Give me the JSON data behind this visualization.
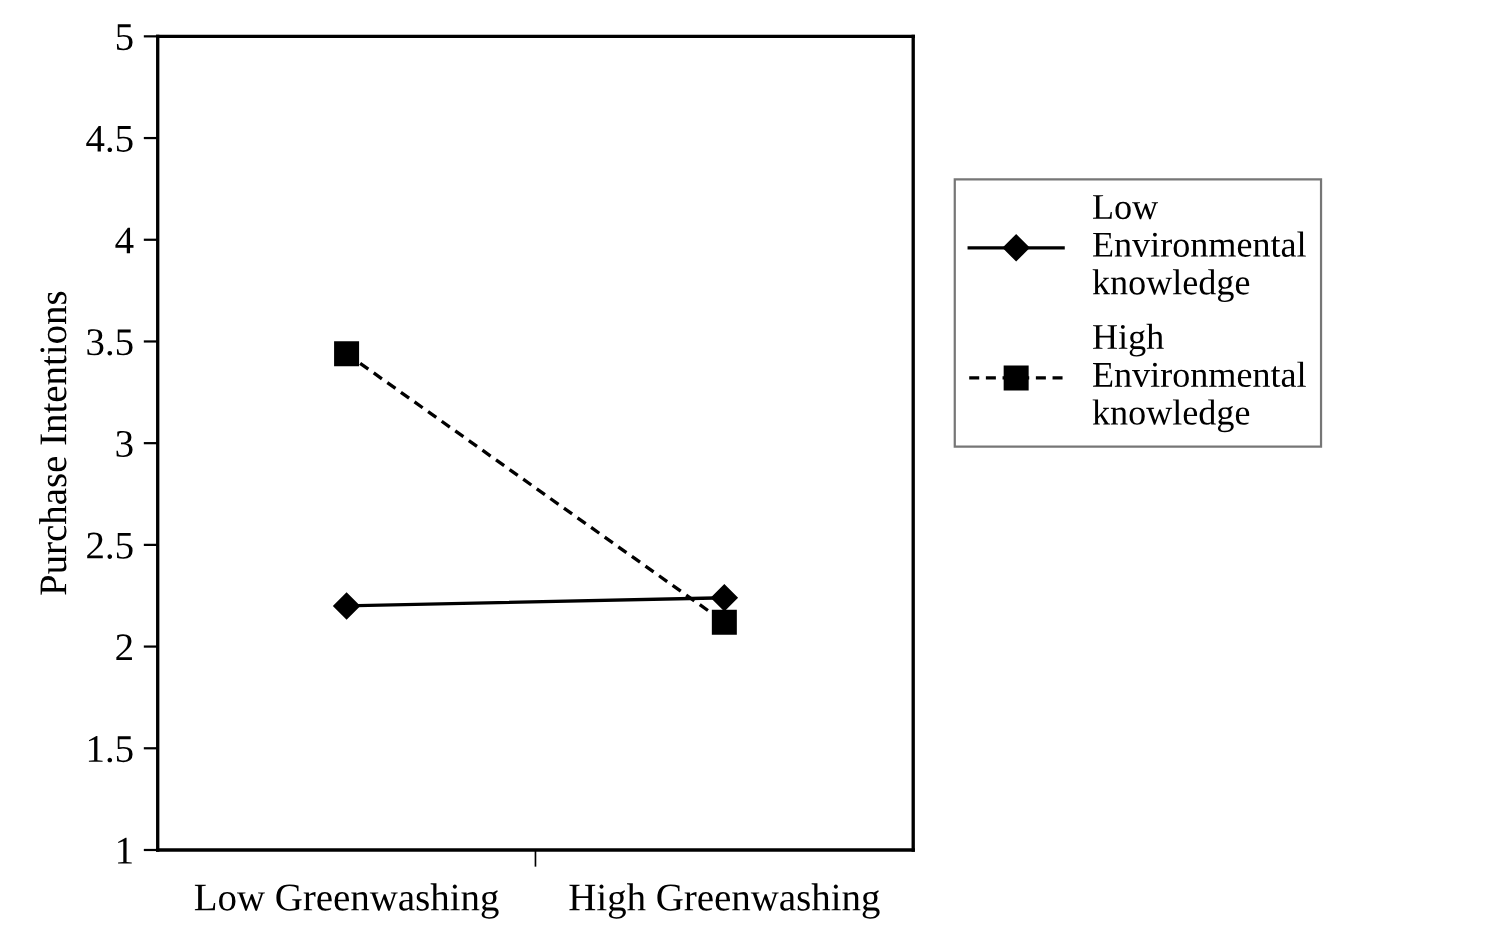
{
  "chart_data": {
    "type": "line",
    "ylabel": "Purchase Intentions",
    "categories": [
      "Low Greenwashing",
      "High Greenwashing"
    ],
    "series": [
      {
        "name": "Low Environmental knowledge",
        "color": "#000000",
        "values": [
          2.2,
          2.24
        ],
        "marker": "diamond",
        "line_style": "solid"
      },
      {
        "name": "High Environmental knowledge",
        "color": "#000000",
        "values": [
          3.44,
          2.12
        ],
        "marker": "square",
        "line_style": "dashed"
      }
    ],
    "ylim": [
      1,
      5
    ],
    "yticks": [
      1,
      1.5,
      2,
      2.5,
      3,
      3.5,
      4,
      4.5,
      5
    ],
    "grid": false,
    "legend": "right"
  }
}
